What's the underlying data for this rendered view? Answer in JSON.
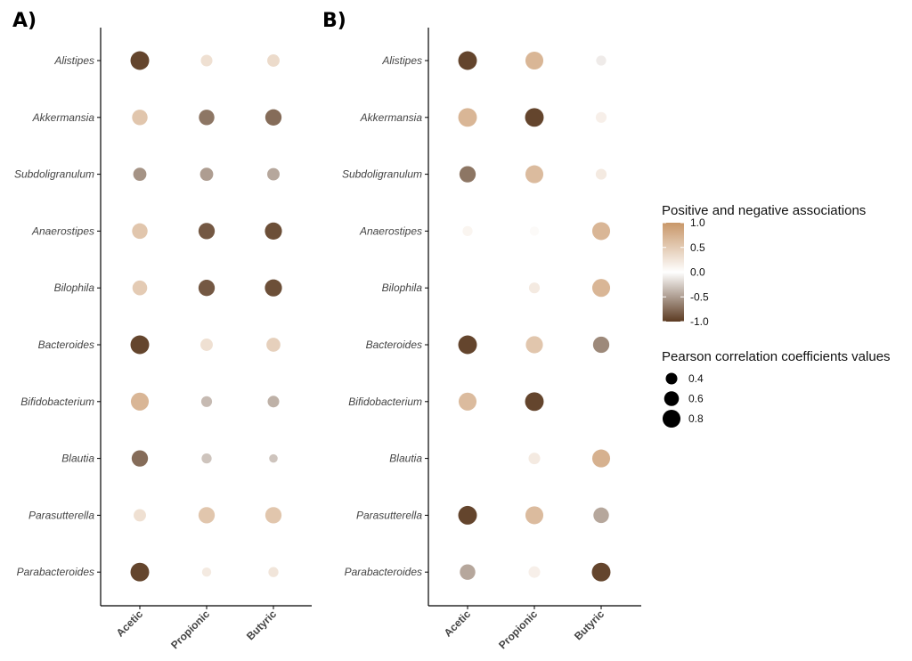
{
  "chart_data": [
    {
      "type": "scatter",
      "panel_label": "A)",
      "categories_x": [
        "Acetic",
        "Propionic",
        "Butyric"
      ],
      "categories_y": [
        "Alistipes",
        "Akkermansia",
        "Subdoligranulum",
        "Anaerostipes",
        "Bilophila",
        "Bacteroides",
        "Bifidobacterium",
        "Blautia",
        "Parasutterella",
        "Parabacteroides"
      ],
      "values": [
        [
          -0.95,
          0.3,
          0.35
        ],
        [
          0.55,
          -0.7,
          -0.75
        ],
        [
          -0.55,
          -0.5,
          -0.45
        ],
        [
          0.55,
          -0.85,
          -0.9
        ],
        [
          0.5,
          -0.85,
          -0.9
        ],
        [
          -0.95,
          0.3,
          0.45
        ],
        [
          0.7,
          -0.35,
          -0.4
        ],
        [
          -0.75,
          -0.3,
          -0.3
        ],
        [
          0.3,
          0.55,
          0.55
        ],
        [
          -0.95,
          0.2,
          0.25
        ]
      ],
      "sizes": [
        [
          0.85,
          0.4,
          0.45
        ],
        [
          0.65,
          0.65,
          0.7
        ],
        [
          0.5,
          0.5,
          0.45
        ],
        [
          0.65,
          0.7,
          0.75
        ],
        [
          0.6,
          0.7,
          0.75
        ],
        [
          0.85,
          0.45,
          0.55
        ],
        [
          0.8,
          0.35,
          0.4
        ],
        [
          0.7,
          0.3,
          0.2
        ],
        [
          0.45,
          0.7,
          0.7
        ],
        [
          0.85,
          0.25,
          0.3
        ]
      ]
    },
    {
      "type": "scatter",
      "panel_label": "B)",
      "categories_x": [
        "Acetic",
        "Propionic",
        "Butyric"
      ],
      "categories_y": [
        "Alistipes",
        "Akkermansia",
        "Subdoligranulum",
        "Anaerostipes",
        "Bilophila",
        "Bacteroides",
        "Bifidobacterium",
        "Blautia",
        "Parasutterella",
        "Parabacteroides"
      ],
      "values": [
        [
          -0.95,
          0.7,
          -0.1
        ],
        [
          0.7,
          -0.95,
          0.15
        ],
        [
          -0.7,
          0.65,
          0.2
        ],
        [
          0.1,
          0.05,
          0.7
        ],
        [
          0.0,
          0.2,
          0.7
        ],
        [
          -0.95,
          0.55,
          -0.6
        ],
        [
          0.65,
          -0.95,
          0.0
        ],
        [
          null,
          0.2,
          0.75
        ],
        [
          -0.95,
          0.65,
          -0.45
        ],
        [
          -0.45,
          0.15,
          -0.95
        ]
      ],
      "sizes": [
        [
          0.85,
          0.8,
          0.3
        ],
        [
          0.85,
          0.85,
          0.35
        ],
        [
          0.7,
          0.8,
          0.35
        ],
        [
          0.3,
          0.25,
          0.8
        ],
        [
          0.2,
          0.35,
          0.8
        ],
        [
          0.85,
          0.75,
          0.7
        ],
        [
          0.8,
          0.85,
          0.2
        ],
        [
          null,
          0.4,
          0.8
        ],
        [
          0.85,
          0.8,
          0.65
        ],
        [
          0.65,
          0.4,
          0.85
        ]
      ]
    }
  ],
  "legend": {
    "color_title": "Positive and negative associations",
    "color_ticks": [
      "1.0",
      "0.5",
      "0.0",
      "-0.5",
      "-1.0"
    ],
    "color_tick_values": [
      1.0,
      0.5,
      0.0,
      -0.5,
      -1.0
    ],
    "size_title": "Pearson correlation coefficients values",
    "size_labels": [
      "0.4",
      "0.6",
      "0.8"
    ],
    "size_values": [
      0.4,
      0.6,
      0.8
    ]
  },
  "colors": {
    "negative": "#5c3b22",
    "zero": "#ffffff",
    "positive": "#c89769",
    "legend_dot": "#000000",
    "axis": "#000000"
  }
}
